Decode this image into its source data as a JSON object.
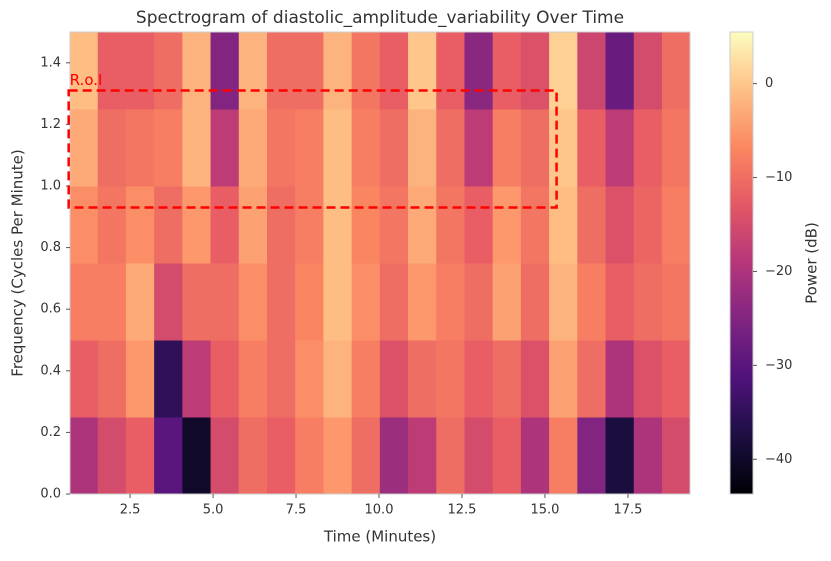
{
  "chart_data": {
    "type": "heatmap",
    "title": "Spectrogram of diastolic_amplitude_variability Over Time",
    "x_label": "Time (Minutes)",
    "y_label": "Frequency (Cycles Per Minute)",
    "colorbar_label": "Power (dB)",
    "colormap": "magma",
    "x": [
      1.1,
      1.95,
      2.8,
      3.65,
      4.5,
      5.35,
      6.2,
      7.05,
      7.9,
      8.75,
      9.6,
      10.45,
      11.3,
      12.15,
      13.0,
      13.85,
      14.7,
      15.55,
      16.4,
      17.25,
      18.1,
      18.95
    ],
    "y": [
      0.125,
      0.375,
      0.625,
      0.875,
      1.125,
      1.375
    ],
    "z": [
      [
        -20,
        -15,
        -12,
        -30,
        -40,
        -15,
        -10,
        -12,
        -8,
        -5,
        -10,
        -22,
        -18,
        -10,
        -15,
        -12,
        -20,
        -8,
        -25,
        -38,
        -20,
        -15
      ],
      [
        -12,
        -10,
        -5,
        -35,
        -18,
        -12,
        -8,
        -10,
        -6,
        -2,
        -8,
        -14,
        -10,
        -9,
        -12,
        -10,
        -14,
        -4,
        -10,
        -20,
        -14,
        -12
      ],
      [
        -8,
        -8,
        -3,
        -15,
        -10,
        -10,
        -6,
        -10,
        -7,
        -1,
        -6,
        -10,
        -5,
        -8,
        -10,
        -4,
        -10,
        -2,
        -8,
        -12,
        -10,
        -9
      ],
      [
        -6,
        -9,
        -6,
        -10,
        -5,
        -12,
        -4,
        -10,
        -8,
        -1,
        -7,
        -9,
        -3,
        -9,
        -12,
        -5,
        -9,
        -1,
        -10,
        -14,
        -11,
        -8
      ],
      [
        -3,
        -10,
        -9,
        -8,
        -2,
        -18,
        -3,
        -9,
        -8,
        -1,
        -8,
        -10,
        -2,
        -10,
        -18,
        -8,
        -10,
        0,
        -12,
        -18,
        -12,
        -9
      ],
      [
        -1,
        -12,
        -12,
        -10,
        -2,
        -25,
        -2,
        -10,
        -10,
        -2,
        -9,
        -12,
        0,
        -12,
        -24,
        -12,
        -14,
        1,
        -16,
        -28,
        -15,
        -10
      ]
    ],
    "xlim": [
      0.69,
      19.37
    ],
    "ylim": [
      0,
      1.5
    ],
    "clim": [
      -43.7,
      5.5
    ],
    "xticks": [
      2.5,
      {
        "value": 5,
        "label": "5.0"
      },
      7.5,
      {
        "value": 10,
        "label": "10.0"
      },
      12.5,
      {
        "value": 15,
        "label": "15.0"
      },
      17.5
    ],
    "yticks": [
      {
        "value": 0,
        "label": "0.0"
      },
      0.2,
      0.4,
      0.6,
      0.8,
      {
        "value": 1,
        "label": "1.0"
      },
      1.2,
      1.4
    ],
    "cticks": [
      {
        "value": -40,
        "label": "−40"
      },
      {
        "value": -30,
        "label": "−30"
      },
      {
        "value": -20,
        "label": "−20"
      },
      {
        "value": -10,
        "label": "−10"
      },
      0
    ],
    "annotations": [
      {
        "text": "R.o.I",
        "x": [
          0.65,
          15.35
        ],
        "y": [
          0.93,
          1.31
        ],
        "color": "red"
      }
    ]
  }
}
